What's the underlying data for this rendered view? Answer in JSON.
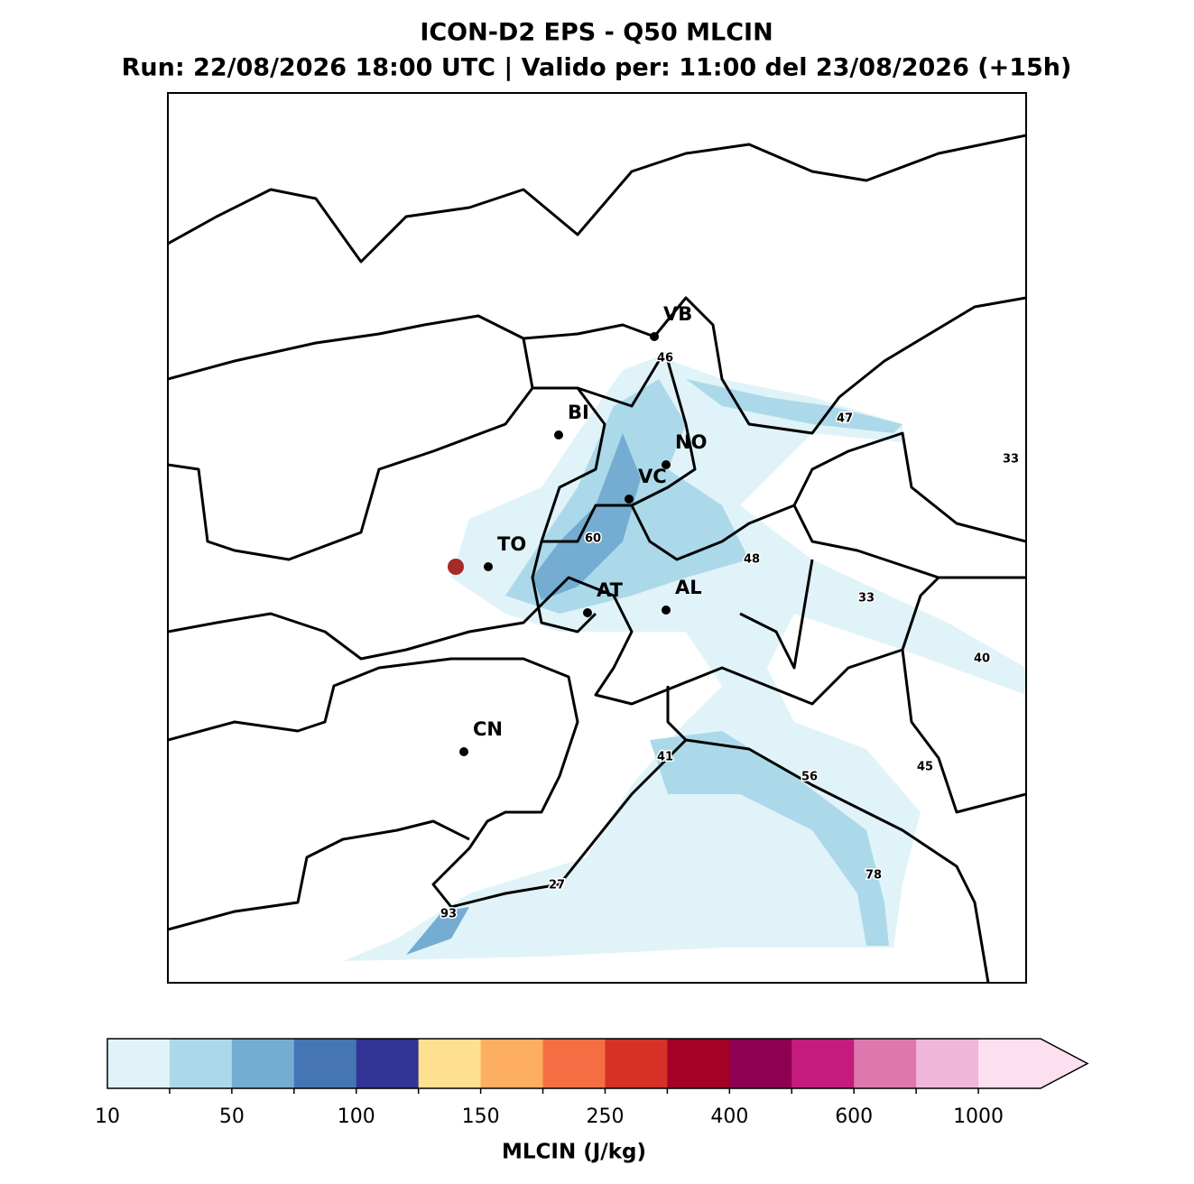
{
  "header": {
    "title": "ICON-D2 EPS - Q50 MLCIN",
    "subtitle": "Run: 22/08/2026 18:00 UTC | Valido per: 11:00 del 23/08/2026 (+15h)"
  },
  "map": {
    "cities": [
      {
        "label": "VB"
      },
      {
        "label": "BI"
      },
      {
        "label": "NO"
      },
      {
        "label": "VC"
      },
      {
        "label": "TO"
      },
      {
        "label": "AT"
      },
      {
        "label": "AL"
      },
      {
        "label": "CN"
      }
    ],
    "contour_labels": [
      46,
      47,
      33,
      60,
      48,
      33,
      40,
      41,
      56,
      45,
      78,
      27,
      93
    ]
  },
  "colorbar": {
    "label": "MLCIN (J/kg)",
    "colors": [
      "#e0f3f8",
      "#abd9e9",
      "#74add1",
      "#4575b4",
      "#313695",
      "#fee090",
      "#fdae61",
      "#f46d43",
      "#d73027",
      "#a50026",
      "#8e0152",
      "#c51b7d",
      "#de77ae",
      "#f1b6da",
      "#fde0ef"
    ],
    "ticks": [
      10,
      50,
      100,
      150,
      250,
      400,
      600,
      1000
    ]
  }
}
